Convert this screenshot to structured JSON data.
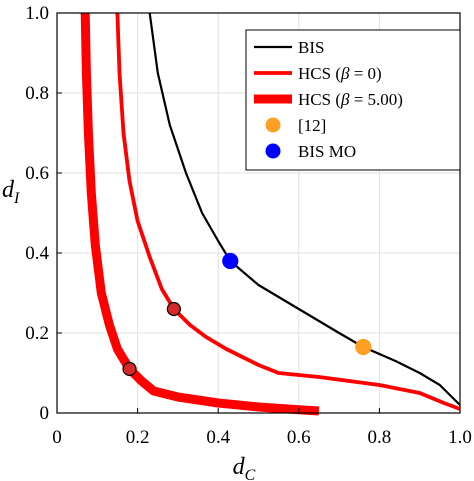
{
  "chart_data": {
    "type": "line",
    "xlabel": "d",
    "xlabel_sub": "C",
    "ylabel": "d",
    "ylabel_sub": "I",
    "xlim": [
      0,
      1
    ],
    "ylim": [
      0,
      1
    ],
    "xticks": [
      "0",
      "0.2",
      "0.4",
      "0.6",
      "0.8",
      "1.0"
    ],
    "yticks": [
      "0",
      "0.2",
      "0.4",
      "0.6",
      "0.8",
      "1.0"
    ],
    "grid": true,
    "legend_position": "top-right",
    "series": [
      {
        "name": "BIS",
        "color": "#000000",
        "style": "thin",
        "points": [
          [
            0.23,
            1.0
          ],
          [
            0.25,
            0.85
          ],
          [
            0.28,
            0.72
          ],
          [
            0.32,
            0.6
          ],
          [
            0.36,
            0.5
          ],
          [
            0.4,
            0.43
          ],
          [
            0.43,
            0.38
          ],
          [
            0.5,
            0.32
          ],
          [
            0.6,
            0.26
          ],
          [
            0.7,
            0.2
          ],
          [
            0.76,
            0.165
          ],
          [
            0.84,
            0.13
          ],
          [
            0.9,
            0.1
          ],
          [
            0.95,
            0.07
          ],
          [
            0.98,
            0.04
          ],
          [
            1.0,
            0.02
          ]
        ]
      },
      {
        "name": "HCS (β = 0)",
        "color": "#ff0000",
        "style": "medium",
        "points": [
          [
            0.15,
            1.0
          ],
          [
            0.155,
            0.85
          ],
          [
            0.165,
            0.7
          ],
          [
            0.18,
            0.58
          ],
          [
            0.2,
            0.48
          ],
          [
            0.23,
            0.39
          ],
          [
            0.26,
            0.31
          ],
          [
            0.29,
            0.26
          ],
          [
            0.33,
            0.22
          ],
          [
            0.37,
            0.19
          ],
          [
            0.42,
            0.16
          ],
          [
            0.5,
            0.12
          ],
          [
            0.55,
            0.1
          ],
          [
            0.65,
            0.09
          ],
          [
            0.8,
            0.07
          ],
          [
            0.9,
            0.05
          ],
          [
            0.96,
            0.025
          ],
          [
            1.0,
            0.01
          ]
        ]
      },
      {
        "name": "HCS (β = 5.00)",
        "color": "#ff0000",
        "style": "thick",
        "points": [
          [
            0.07,
            1.0
          ],
          [
            0.073,
            0.85
          ],
          [
            0.078,
            0.7
          ],
          [
            0.085,
            0.55
          ],
          [
            0.095,
            0.42
          ],
          [
            0.11,
            0.3
          ],
          [
            0.13,
            0.22
          ],
          [
            0.15,
            0.16
          ],
          [
            0.18,
            0.11
          ],
          [
            0.21,
            0.08
          ],
          [
            0.24,
            0.055
          ],
          [
            0.3,
            0.04
          ],
          [
            0.4,
            0.025
          ],
          [
            0.5,
            0.015
          ],
          [
            0.6,
            0.008
          ],
          [
            0.65,
            0.005
          ]
        ]
      }
    ],
    "markers": [
      {
        "name": "[12]",
        "legend": true,
        "x": 0.76,
        "y": 0.165,
        "color": "#ffa024",
        "edge": "#ffa024"
      },
      {
        "name": "BIS MO",
        "legend": true,
        "x": 0.43,
        "y": 0.38,
        "color": "#0000ff",
        "edge": "#0000ff"
      },
      {
        "x": 0.29,
        "y": 0.26,
        "color": "#d62828",
        "edge": "#000000"
      },
      {
        "x": 0.18,
        "y": 0.11,
        "color": "#d62828",
        "edge": "#000000"
      }
    ]
  }
}
